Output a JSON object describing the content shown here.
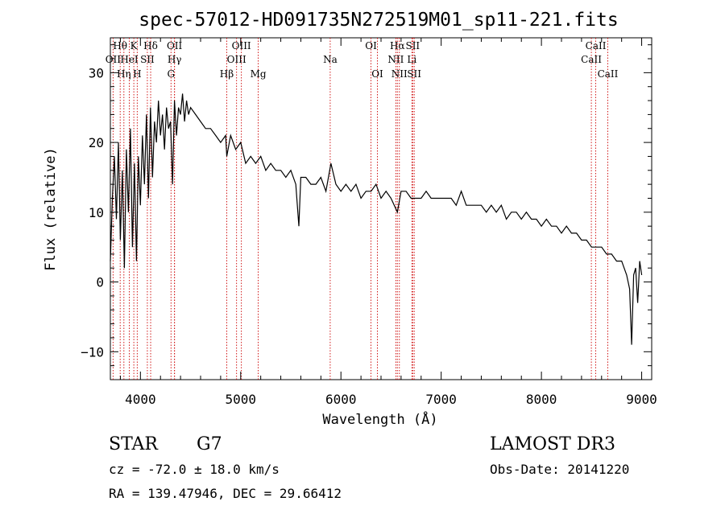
{
  "chart_data": {
    "type": "line",
    "title": "spec-57012-HD091735N272519M01_sp11-221.fits",
    "xlabel": "Wavelength (Å)",
    "ylabel": "Flux (relative)",
    "xlim": [
      3700,
      9100
    ],
    "ylim": [
      -14,
      35
    ],
    "x_ticks": [
      4000,
      5000,
      6000,
      7000,
      8000,
      9000
    ],
    "y_ticks": [
      -10,
      0,
      10,
      20,
      30
    ],
    "series": [
      {
        "name": "flux",
        "x": [
          3700,
          3720,
          3740,
          3760,
          3780,
          3800,
          3820,
          3840,
          3860,
          3880,
          3900,
          3920,
          3940,
          3960,
          3980,
          4000,
          4020,
          4040,
          4060,
          4080,
          4100,
          4120,
          4140,
          4160,
          4180,
          4200,
          4220,
          4240,
          4260,
          4280,
          4300,
          4320,
          4340,
          4360,
          4380,
          4400,
          4420,
          4440,
          4460,
          4480,
          4500,
          4550,
          4600,
          4650,
          4700,
          4750,
          4800,
          4850,
          4861,
          4900,
          4950,
          5000,
          5050,
          5100,
          5150,
          5200,
          5250,
          5300,
          5350,
          5400,
          5450,
          5500,
          5550,
          5580,
          5600,
          5650,
          5700,
          5750,
          5800,
          5850,
          5900,
          5950,
          6000,
          6050,
          6100,
          6150,
          6200,
          6250,
          6300,
          6350,
          6400,
          6450,
          6500,
          6563,
          6600,
          6650,
          6700,
          6750,
          6800,
          6850,
          6900,
          6950,
          7000,
          7050,
          7100,
          7150,
          7200,
          7250,
          7300,
          7350,
          7400,
          7450,
          7500,
          7550,
          7600,
          7650,
          7700,
          7750,
          7800,
          7850,
          7900,
          7950,
          8000,
          8050,
          8100,
          8150,
          8200,
          8250,
          8300,
          8350,
          8400,
          8450,
          8500,
          8550,
          8600,
          8650,
          8700,
          8750,
          8800,
          8850,
          8880,
          8900,
          8920,
          8940,
          8960,
          8980,
          9000
        ],
        "values": [
          3,
          12,
          18,
          9,
          20,
          6,
          16,
          2,
          19,
          10,
          22,
          5,
          17,
          3,
          18,
          11,
          21,
          14,
          24,
          12,
          25,
          15,
          23,
          20,
          26,
          21,
          24,
          19,
          25,
          22,
          23,
          14,
          26,
          21,
          25,
          24,
          27,
          23,
          26,
          24,
          25,
          24,
          23,
          22,
          22,
          21,
          20,
          21,
          18,
          21,
          19,
          20,
          17,
          18,
          17,
          18,
          16,
          17,
          16,
          16,
          15,
          16,
          14,
          8,
          15,
          15,
          14,
          14,
          15,
          13,
          17,
          14,
          13,
          14,
          13,
          14,
          12,
          13,
          13,
          14,
          12,
          13,
          12,
          10,
          13,
          13,
          12,
          12,
          12,
          13,
          12,
          12,
          12,
          12,
          12,
          11,
          13,
          11,
          11,
          11,
          11,
          10,
          11,
          10,
          11,
          9,
          10,
          10,
          9,
          10,
          9,
          9,
          8,
          9,
          8,
          8,
          7,
          8,
          7,
          7,
          6,
          6,
          5,
          5,
          5,
          4,
          4,
          3,
          3,
          1,
          -1,
          -9,
          1,
          2,
          -3,
          3,
          1
        ]
      }
    ],
    "lines": [
      {
        "label": "Hθ",
        "x": 3798,
        "row": 0
      },
      {
        "label": "K",
        "x": 3934,
        "row": 0
      },
      {
        "label": "Hδ",
        "x": 4102,
        "row": 0
      },
      {
        "label": "OII",
        "x": 4340,
        "row": 0
      },
      {
        "label": "OIII",
        "x": 5007,
        "row": 0
      },
      {
        "label": "OI",
        "x": 6300,
        "row": 0
      },
      {
        "label": "Hα",
        "x": 6563,
        "row": 0
      },
      {
        "label": "SII",
        "x": 6716,
        "row": 0
      },
      {
        "label": "CaII",
        "x": 8542,
        "row": 0
      },
      {
        "label": "OII",
        "x": 3727,
        "row": 1
      },
      {
        "label": "HeI",
        "x": 3889,
        "row": 1
      },
      {
        "label": "SII",
        "x": 4069,
        "row": 1
      },
      {
        "label": "Hγ",
        "x": 4340,
        "row": 1
      },
      {
        "label": "OIII",
        "x": 4959,
        "row": 1
      },
      {
        "label": "Na",
        "x": 5893,
        "row": 1
      },
      {
        "label": "NII",
        "x": 6548,
        "row": 1
      },
      {
        "label": "Li",
        "x": 6708,
        "row": 1
      },
      {
        "label": "CaII",
        "x": 8498,
        "row": 1
      },
      {
        "label": "Hη",
        "x": 3835,
        "row": 2
      },
      {
        "label": "H",
        "x": 3968,
        "row": 2
      },
      {
        "label": "G",
        "x": 4305,
        "row": 2
      },
      {
        "label": "Hβ",
        "x": 4861,
        "row": 2
      },
      {
        "label": "Mg",
        "x": 5175,
        "row": 2
      },
      {
        "label": "OI",
        "x": 6364,
        "row": 2
      },
      {
        "label": "NII",
        "x": 6583,
        "row": 2
      },
      {
        "label": "SII",
        "x": 6731,
        "row": 2
      },
      {
        "label": "CaII",
        "x": 8662,
        "row": 2
      }
    ]
  },
  "footer": {
    "class": "STAR",
    "subclass": "G7",
    "survey": "LAMOST DR3",
    "cz": "cz = -72.0 ± 18.0 km/s",
    "obs_date": "Obs-Date: 20141220",
    "coords": "RA = 139.47946, DEC =  29.66412"
  },
  "colors": {
    "line_marker": "#cc0000",
    "spectrum": "#000000"
  }
}
